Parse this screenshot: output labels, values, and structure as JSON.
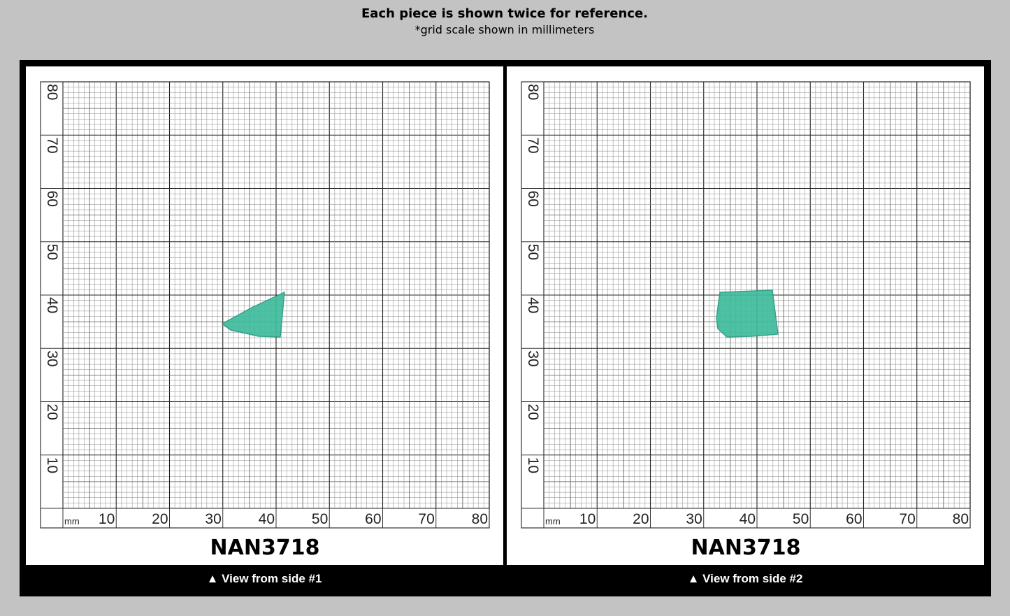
{
  "header": {
    "title": "Each piece is shown twice for reference.",
    "subtitle": "*grid scale shown in millimeters"
  },
  "panels": [
    {
      "label": "NAN3718",
      "caption": "▲ View from side #1",
      "unit": "mm",
      "x_labels": [
        "10",
        "20",
        "30",
        "40",
        "50",
        "60",
        "70",
        "80"
      ],
      "y_labels": [
        "10",
        "20",
        "30",
        "40",
        "50",
        "60",
        "70",
        "80"
      ]
    },
    {
      "label": "NAN3718",
      "caption": "▲ View from side #2",
      "unit": "mm",
      "x_labels": [
        "10",
        "20",
        "30",
        "40",
        "50",
        "60",
        "70",
        "80"
      ],
      "y_labels": [
        "10",
        "20",
        "30",
        "40",
        "50",
        "60",
        "70",
        "80"
      ]
    }
  ]
}
